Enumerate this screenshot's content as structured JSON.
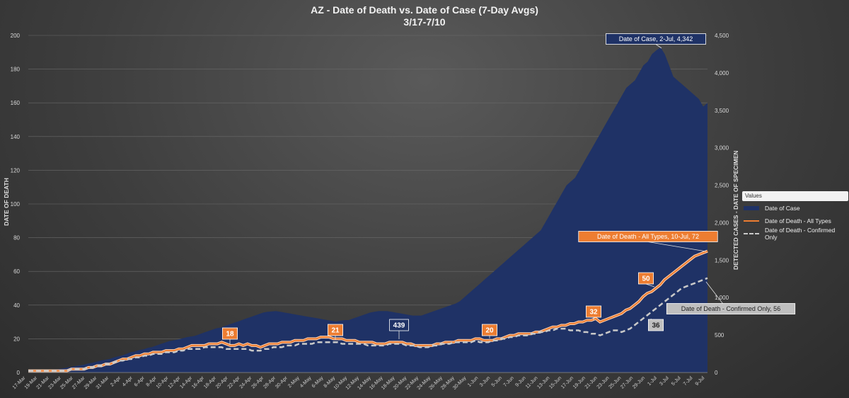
{
  "chart_data": {
    "type": "area",
    "title": "AZ - Date of Death vs. Date of Case (7-Day Avgs)",
    "subtitle": "3/17-7/10",
    "ylabel_left": "DATE OF DEATH",
    "ylabel_right": "DETECTED CASES - DATE OF SPECIMEN",
    "y_left_range": [
      0,
      200
    ],
    "y_left_ticks": [
      "0",
      "20",
      "40",
      "60",
      "80",
      "100",
      "120",
      "140",
      "160",
      "180",
      "200"
    ],
    "y_right_range": [
      0,
      4500
    ],
    "y_right_ticks": [
      "0",
      "500",
      "1,000",
      "1,500",
      "2,000",
      "2,500",
      "3,000",
      "3,500",
      "4,000",
      "4,500"
    ],
    "x_tick_labels": [
      "17-Mar",
      "19-Mar",
      "21-Mar",
      "23-Mar",
      "25-Mar",
      "27-Mar",
      "29-Mar",
      "31-Mar",
      "2-Apr",
      "4-Apr",
      "6-Apr",
      "8-Apr",
      "10-Apr",
      "12-Apr",
      "14-Apr",
      "16-Apr",
      "18-Apr",
      "20-Apr",
      "22-Apr",
      "24-Apr",
      "26-Apr",
      "28-Apr",
      "30-Apr",
      "2-May",
      "4-May",
      "6-May",
      "8-May",
      "10-May",
      "12-May",
      "14-May",
      "16-May",
      "18-May",
      "20-May",
      "22-May",
      "24-May",
      "26-May",
      "28-May",
      "30-May",
      "1-Jun",
      "3-Jun",
      "5-Jun",
      "7-Jun",
      "9-Jun",
      "11-Jun",
      "13-Jun",
      "15-Jun",
      "17-Jun",
      "19-Jun",
      "21-Jun",
      "23-Jun",
      "25-Jun",
      "27-Jun",
      "29-Jun",
      "1-Jul",
      "3-Jul",
      "5-Jul",
      "7-Jul",
      "9-Jul"
    ],
    "legend_title": "Values",
    "grid": true,
    "legend_position": "right",
    "series": [
      {
        "name": "Date of Case",
        "axis": "right",
        "color": "#1f3266",
        "values": [
          10,
          20,
          25,
          30,
          28,
          35,
          40,
          45,
          55,
          65,
          75,
          85,
          95,
          105,
          120,
          130,
          145,
          160,
          170,
          180,
          200,
          215,
          230,
          250,
          270,
          280,
          300,
          310,
          330,
          340,
          360,
          380,
          400,
          420,
          430,
          440,
          455,
          470,
          480,
          490,
          510,
          530,
          550,
          570,
          590,
          600,
          620,
          640,
          660,
          680,
          700,
          720,
          740,
          760,
          780,
          800,
          810,
          815,
          820,
          810,
          800,
          790,
          780,
          770,
          760,
          750,
          740,
          730,
          720,
          710,
          700,
          690,
          680,
          690,
          700,
          700,
          720,
          740,
          760,
          780,
          800,
          810,
          820,
          820,
          820,
          810,
          800,
          790,
          780,
          770,
          760,
          760,
          760,
          780,
          800,
          820,
          840,
          860,
          880,
          900,
          920,
          950,
          1000,
          1050,
          1100,
          1150,
          1200,
          1250,
          1300,
          1350,
          1400,
          1450,
          1500,
          1550,
          1600,
          1650,
          1700,
          1750,
          1800,
          1850,
          1900,
          2000,
          2100,
          2200,
          2300,
          2400,
          2500,
          2550,
          2600,
          2700,
          2800,
          2900,
          3000,
          3100,
          3200,
          3300,
          3400,
          3500,
          3600,
          3700,
          3800,
          3850,
          3900,
          4000,
          4100,
          4150,
          4250,
          4300,
          4342,
          4250,
          4100,
          3950,
          3900,
          3850,
          3800,
          3750,
          3700,
          3650,
          3550,
          3600
        ]
      },
      {
        "name": "Date of Death - All Types",
        "axis": "left",
        "color": "#ed7d31",
        "values": [
          1,
          1,
          1,
          1,
          1,
          1,
          1,
          1,
          1,
          1,
          2,
          2,
          2,
          2,
          3,
          3,
          4,
          4,
          5,
          5,
          6,
          7,
          8,
          8,
          9,
          10,
          10,
          11,
          11,
          12,
          12,
          12,
          13,
          13,
          13,
          14,
          14,
          15,
          16,
          16,
          16,
          16,
          17,
          17,
          17,
          18,
          17,
          16,
          16,
          17,
          16,
          17,
          16,
          16,
          15,
          16,
          17,
          17,
          17,
          18,
          18,
          18,
          19,
          19,
          19,
          20,
          20,
          20,
          21,
          21,
          21,
          20,
          20,
          20,
          19,
          19,
          19,
          18,
          18,
          18,
          18,
          17,
          17,
          17,
          18,
          18,
          18,
          18,
          17,
          17,
          16,
          16,
          16,
          16,
          16,
          17,
          17,
          18,
          18,
          18,
          19,
          19,
          19,
          19,
          20,
          20,
          19,
          19,
          19,
          20,
          20,
          21,
          22,
          22,
          23,
          23,
          23,
          23,
          24,
          24,
          25,
          26,
          27,
          27,
          28,
          28,
          29,
          29,
          30,
          30,
          31,
          31,
          32,
          30,
          31,
          32,
          33,
          34,
          35,
          37,
          38,
          40,
          42,
          45,
          47,
          48,
          50,
          52,
          55,
          57,
          59,
          61,
          63,
          65,
          67,
          69,
          70,
          71,
          72
        ]
      },
      {
        "name": "Date of Death - Confirmed Only",
        "axis": "left",
        "color": "#c9c9c9",
        "values": [
          1,
          1,
          1,
          1,
          1,
          1,
          1,
          1,
          1,
          1,
          2,
          2,
          2,
          2,
          3,
          3,
          4,
          4,
          5,
          5,
          6,
          7,
          7,
          8,
          8,
          9,
          9,
          10,
          10,
          11,
          11,
          11,
          12,
          12,
          12,
          13,
          13,
          14,
          14,
          14,
          14,
          15,
          15,
          15,
          15,
          15,
          14,
          14,
          14,
          14,
          14,
          14,
          13,
          13,
          13,
          14,
          14,
          15,
          15,
          15,
          16,
          16,
          16,
          17,
          17,
          17,
          17,
          18,
          18,
          18,
          18,
          18,
          18,
          17,
          17,
          17,
          17,
          17,
          17,
          16,
          16,
          16,
          16,
          16,
          17,
          17,
          17,
          17,
          16,
          16,
          16,
          15,
          15,
          15,
          16,
          16,
          17,
          17,
          17,
          18,
          18,
          18,
          18,
          18,
          19,
          18,
          18,
          18,
          19,
          19,
          20,
          20,
          21,
          21,
          22,
          22,
          22,
          23,
          23,
          24,
          24,
          25,
          25,
          26,
          26,
          26,
          25,
          25,
          25,
          24,
          24,
          23,
          23,
          22,
          23,
          24,
          25,
          25,
          24,
          25,
          26,
          28,
          30,
          32,
          34,
          36,
          38,
          40,
          42,
          44,
          46,
          48,
          50,
          51,
          52,
          53,
          54,
          55,
          56
        ]
      }
    ],
    "annotations": [
      {
        "text": "Date of Case, 2-Jul, 4,342",
        "style": "navy"
      },
      {
        "text": "Date of Death - All Types, 10-Jul, 72",
        "style": "orange"
      },
      {
        "text": "Date of Death - Confirmed Only, 56",
        "style": "grey"
      },
      {
        "text": "18",
        "style": "orange"
      },
      {
        "text": "21",
        "style": "orange"
      },
      {
        "text": "439",
        "style": "navy"
      },
      {
        "text": "20",
        "style": "orange"
      },
      {
        "text": "32",
        "style": "orange"
      },
      {
        "text": "50",
        "style": "orange"
      },
      {
        "text": "36",
        "style": "grey"
      }
    ]
  }
}
